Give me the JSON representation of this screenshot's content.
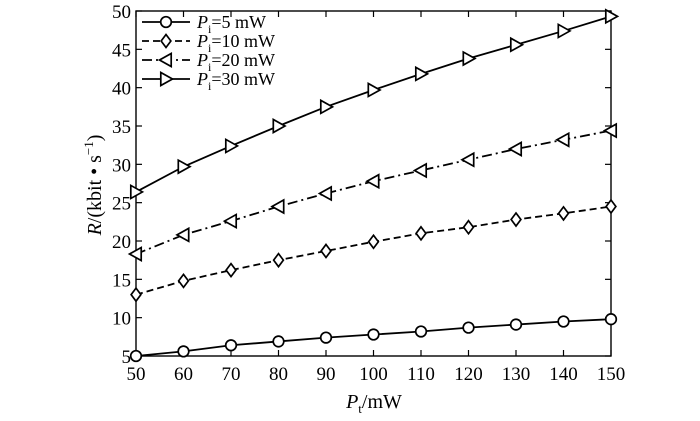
{
  "chart_data": {
    "type": "line",
    "xlabel": {
      "main": "P",
      "sub": "t",
      "rest": "/mW"
    },
    "ylabel": {
      "main": "R",
      "rest": "/(kbit • s",
      "sup": "−1",
      "close": ")"
    },
    "xlim": [
      50,
      150
    ],
    "ylim": [
      5,
      50
    ],
    "xticks": [
      "50",
      "60",
      "70",
      "80",
      "90",
      "100",
      "110",
      "120",
      "130",
      "140",
      "150"
    ],
    "yticks": [
      "5",
      "10",
      "15",
      "20",
      "25",
      "30",
      "35",
      "40",
      "45",
      "50"
    ],
    "grid": false,
    "legend_position": "top-left",
    "x": [
      50,
      60,
      70,
      80,
      90,
      100,
      110,
      120,
      130,
      140,
      150
    ],
    "series": [
      {
        "label_main": "P",
        "label_sub": "i",
        "label_value": "=5 mW",
        "marker": "circle",
        "dash": "solid",
        "values": [
          5.0,
          5.6,
          6.4,
          6.9,
          7.4,
          7.8,
          8.2,
          8.7,
          9.1,
          9.5,
          9.8
        ]
      },
      {
        "label_main": "P",
        "label_sub": "i",
        "label_value": "=10 mW",
        "marker": "diamond",
        "dash": "dashed",
        "values": [
          13.0,
          14.8,
          16.2,
          17.5,
          18.7,
          19.9,
          21.0,
          21.8,
          22.8,
          23.6,
          24.5
        ]
      },
      {
        "label_main": "P",
        "label_sub": "i",
        "label_value": "=20 mW",
        "marker": "triangle-left",
        "dash": "dashdot",
        "values": [
          18.3,
          20.8,
          22.6,
          24.5,
          26.2,
          27.8,
          29.2,
          30.6,
          32.0,
          33.2,
          34.4
        ]
      },
      {
        "label_main": "P",
        "label_sub": "i",
        "label_value": "=30 mW",
        "marker": "triangle-right",
        "dash": "solid",
        "values": [
          26.4,
          29.7,
          32.4,
          35.0,
          37.5,
          39.7,
          41.8,
          43.8,
          45.6,
          47.4,
          49.3
        ]
      }
    ]
  }
}
